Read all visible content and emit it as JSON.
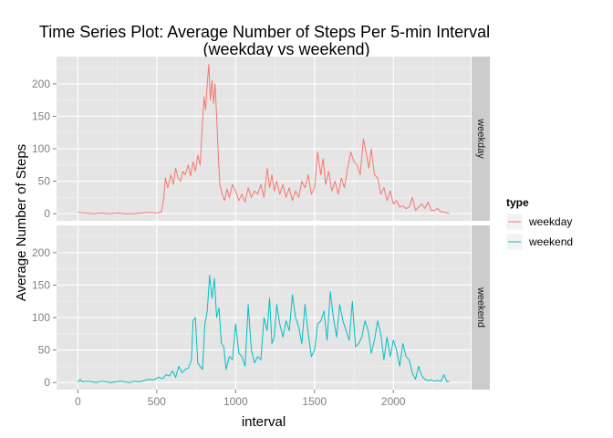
{
  "chart_data": {
    "type": "line",
    "title": "Time Series Plot: Average Number of Steps Per 5-min Interval",
    "subtitle": "(weekday vs weekend)",
    "xlabel": "interval",
    "ylabel": "Average Number of Steps",
    "xlim": [
      -135,
      2490
    ],
    "ylim": [
      -11,
      242
    ],
    "x_ticks": [
      0,
      500,
      1000,
      1500,
      2000
    ],
    "y_ticks": [
      0,
      50,
      100,
      150,
      200
    ],
    "x_tick_labels": [
      "0",
      "500",
      "1000",
      "1500",
      "2000"
    ],
    "y_tick_labels": [
      "0",
      "50",
      "100",
      "150",
      "200"
    ],
    "grid": true,
    "legend": {
      "title": "type",
      "position": "right"
    },
    "facets": [
      "weekday",
      "weekend"
    ],
    "series": [
      {
        "name": "weekday",
        "color": "#F8766D",
        "x": [
          0,
          50,
          100,
          150,
          200,
          250,
          300,
          350,
          400,
          450,
          500,
          530,
          545,
          555,
          570,
          590,
          605,
          620,
          635,
          650,
          665,
          680,
          700,
          715,
          730,
          745,
          760,
          775,
          790,
          800,
          810,
          820,
          830,
          840,
          850,
          860,
          870,
          880,
          890,
          900,
          915,
          930,
          945,
          960,
          980,
          1000,
          1020,
          1040,
          1060,
          1080,
          1100,
          1120,
          1140,
          1160,
          1180,
          1200,
          1215,
          1230,
          1245,
          1260,
          1280,
          1300,
          1320,
          1340,
          1360,
          1380,
          1400,
          1420,
          1440,
          1460,
          1480,
          1500,
          1520,
          1540,
          1555,
          1570,
          1590,
          1610,
          1630,
          1650,
          1670,
          1690,
          1710,
          1730,
          1750,
          1770,
          1790,
          1810,
          1830,
          1845,
          1860,
          1880,
          1900,
          1920,
          1940,
          1960,
          1980,
          2000,
          2020,
          2040,
          2060,
          2080,
          2100,
          2120,
          2140,
          2160,
          2180,
          2200,
          2220,
          2240,
          2260,
          2280,
          2300,
          2330,
          2355
        ],
        "y": [
          2,
          1,
          0,
          1,
          0,
          1,
          0,
          0,
          1,
          2,
          1,
          3,
          25,
          55,
          40,
          60,
          45,
          70,
          55,
          50,
          65,
          60,
          75,
          58,
          80,
          65,
          90,
          75,
          140,
          180,
          160,
          200,
          230,
          175,
          205,
          170,
          200,
          150,
          90,
          45,
          30,
          20,
          38,
          25,
          45,
          35,
          20,
          30,
          18,
          40,
          25,
          35,
          30,
          45,
          25,
          70,
          40,
          60,
          35,
          50,
          30,
          45,
          25,
          40,
          20,
          35,
          25,
          50,
          40,
          60,
          30,
          40,
          95,
          60,
          85,
          45,
          65,
          35,
          50,
          30,
          55,
          40,
          70,
          95,
          80,
          75,
          60,
          115,
          90,
          70,
          100,
          60,
          55,
          30,
          40,
          20,
          35,
          15,
          20,
          10,
          12,
          8,
          10,
          25,
          5,
          10,
          15,
          8,
          18,
          5,
          5,
          8,
          3,
          2,
          0
        ]
      },
      {
        "name": "weekend",
        "color": "#00BFC4",
        "x": [
          0,
          15,
          30,
          60,
          90,
          120,
          150,
          180,
          210,
          240,
          270,
          300,
          330,
          360,
          390,
          420,
          450,
          480,
          510,
          540,
          560,
          580,
          600,
          620,
          640,
          660,
          680,
          700,
          720,
          730,
          745,
          760,
          775,
          790,
          805,
          820,
          835,
          850,
          865,
          880,
          895,
          910,
          925,
          940,
          960,
          980,
          1000,
          1020,
          1040,
          1060,
          1080,
          1100,
          1120,
          1140,
          1160,
          1180,
          1200,
          1215,
          1230,
          1245,
          1260,
          1280,
          1300,
          1320,
          1340,
          1360,
          1380,
          1400,
          1420,
          1440,
          1460,
          1480,
          1500,
          1520,
          1540,
          1560,
          1580,
          1600,
          1620,
          1640,
          1660,
          1680,
          1700,
          1720,
          1740,
          1760,
          1780,
          1800,
          1820,
          1840,
          1860,
          1880,
          1900,
          1920,
          1940,
          1960,
          1980,
          2000,
          2020,
          2040,
          2060,
          2080,
          2100,
          2120,
          2140,
          2160,
          2180,
          2200,
          2220,
          2240,
          2260,
          2280,
          2300,
          2320,
          2340,
          2355
        ],
        "y": [
          0,
          5,
          1,
          2,
          1,
          0,
          2,
          1,
          0,
          1,
          2,
          1,
          0,
          2,
          1,
          3,
          5,
          4,
          8,
          6,
          12,
          10,
          18,
          8,
          25,
          15,
          20,
          22,
          35,
          95,
          100,
          30,
          25,
          20,
          90,
          110,
          165,
          130,
          160,
          100,
          115,
          60,
          55,
          20,
          40,
          35,
          90,
          45,
          40,
          25,
          120,
          50,
          30,
          40,
          35,
          100,
          80,
          130,
          60,
          70,
          120,
          90,
          70,
          95,
          80,
          135,
          100,
          85,
          60,
          120,
          75,
          40,
          50,
          90,
          95,
          110,
          65,
          140,
          100,
          70,
          120,
          95,
          80,
          65,
          125,
          55,
          60,
          70,
          95,
          80,
          45,
          65,
          95,
          75,
          35,
          70,
          40,
          65,
          50,
          25,
          60,
          40,
          35,
          15,
          5,
          25,
          10,
          5,
          3,
          4,
          2,
          3,
          2,
          12,
          1,
          2
        ]
      }
    ]
  }
}
